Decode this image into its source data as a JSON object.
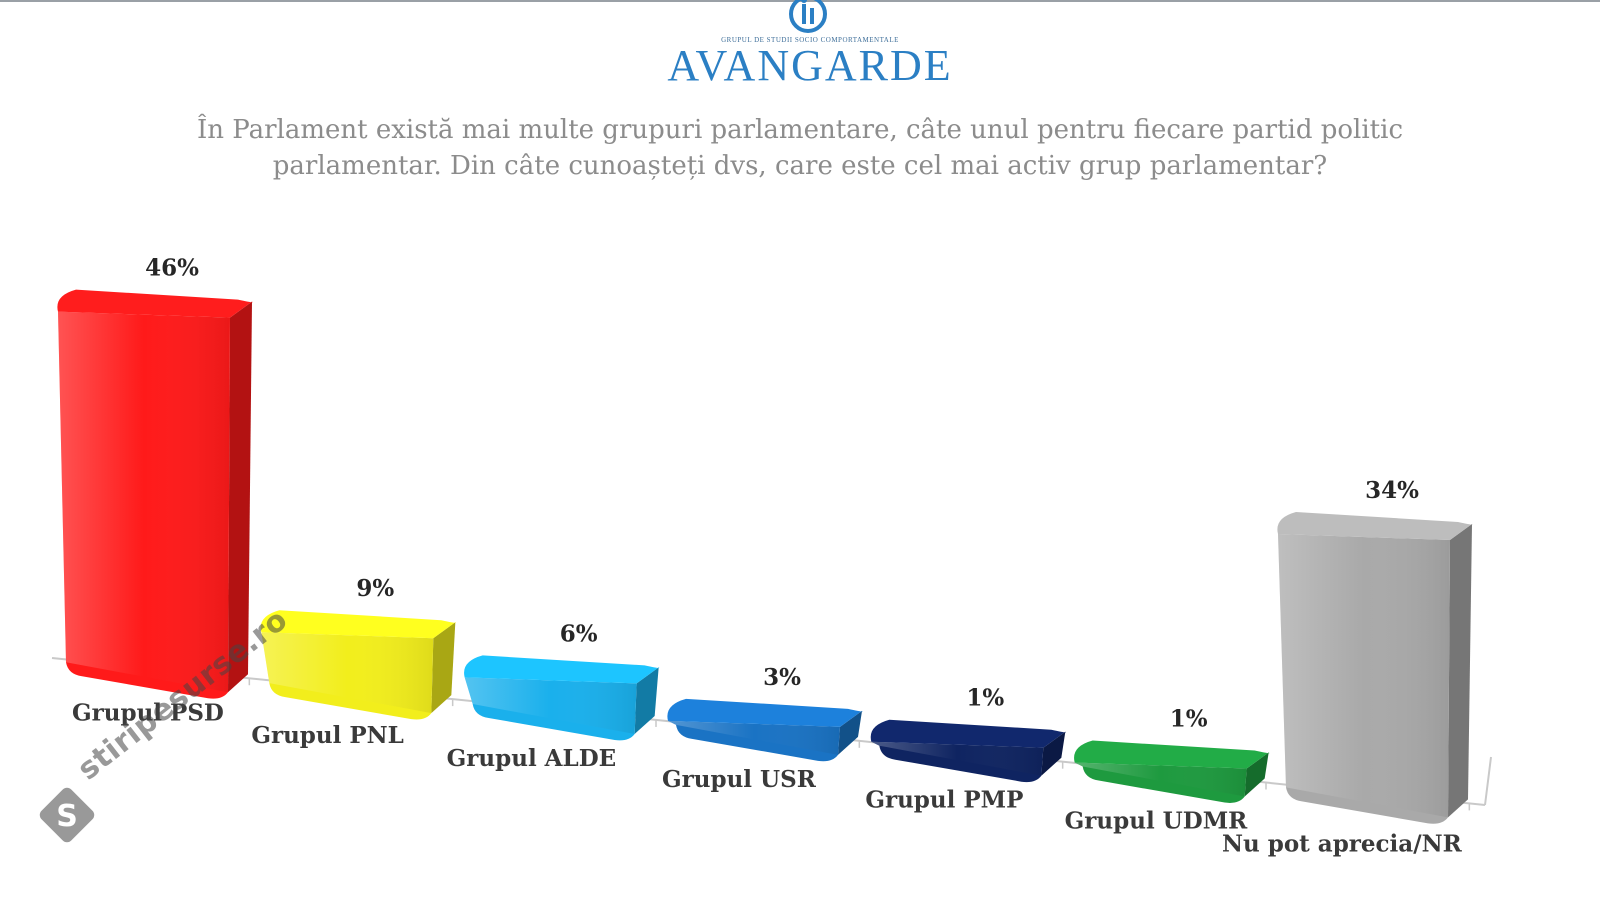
{
  "header": {
    "brand": "AVANGARDE",
    "tagline": "GRUPUL DE STUDII SOCIO COMPORTAMENTALE"
  },
  "question": {
    "line1": "În Parlament există mai multe grupuri parlamentare, câte unul pentru fiecare partid politic",
    "line2": "parlamentar. Din câte cunoașteți dvs, care este cel mai activ grup parlamentar?"
  },
  "watermark": {
    "text": "stiripesurse.ro"
  },
  "chart_data": {
    "type": "bar",
    "title": "În Parlament există mai multe grupuri parlamentare, câte unul pentru fiecare partid politic parlamentar. Din câte cunoașteți dvs, care este cel mai activ grup parlamentar?",
    "categories": [
      "Grupul PSD",
      "Grupul PNL",
      "Grupul ALDE",
      "Grupul USR",
      "Grupul PMP",
      "Grupul UDMR",
      "Nu pot aprecia/NR"
    ],
    "values": [
      46,
      9,
      6,
      3,
      1,
      1,
      34
    ],
    "value_labels": [
      "46%",
      "9%",
      "6%",
      "3%",
      "1%",
      "1%",
      "34%"
    ],
    "colors": [
      "#ff1a1a",
      "#f2ee1c",
      "#1ab0ec",
      "#1a73c4",
      "#0f2461",
      "#1e9a3f",
      "#a9a9a9"
    ],
    "unit": "%",
    "ylim": [
      0,
      46
    ],
    "grid": false,
    "legend": "none"
  }
}
